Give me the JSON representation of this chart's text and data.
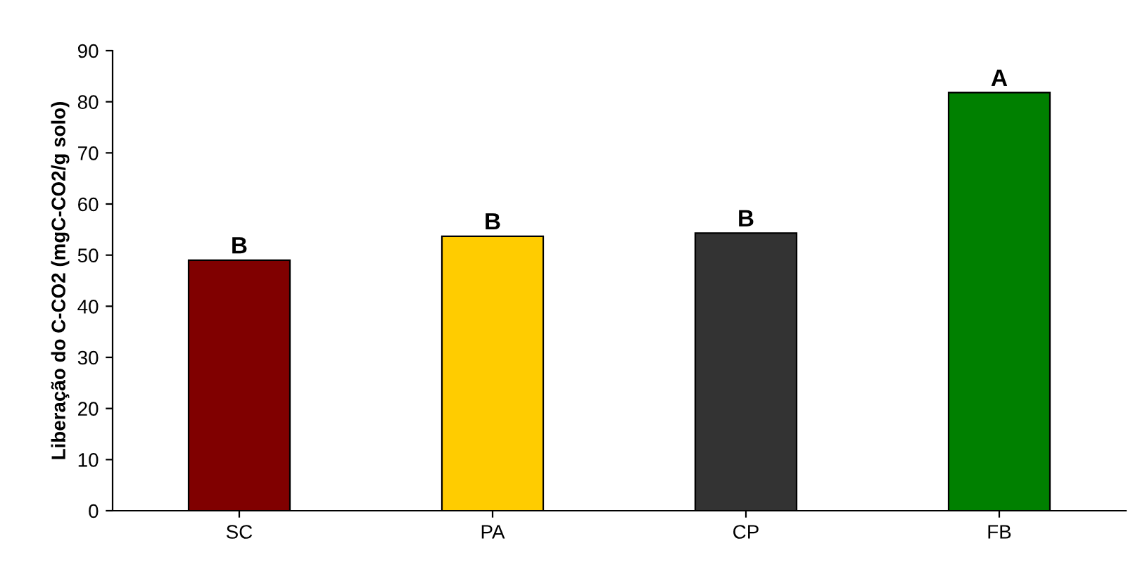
{
  "chart_data": {
    "type": "bar",
    "ylabel": "Liberação do C-CO2 (mgC-CO2/g solo)",
    "categories": [
      "SC",
      "PA",
      "CP",
      "FB"
    ],
    "values": [
      49,
      53.7,
      54.3,
      81.8
    ],
    "colors": [
      "#800000",
      "#ffcc00",
      "#333333",
      "#008000"
    ],
    "ylim": [
      0,
      90
    ],
    "yticks": [
      0,
      10,
      20,
      30,
      40,
      50,
      60,
      70,
      80,
      90
    ],
    "grid": false,
    "legend": false,
    "annotations": [
      {
        "text": "B",
        "x": "SC",
        "y": 49
      },
      {
        "text": "B",
        "x": "PA",
        "y": 53.7
      },
      {
        "text": "B",
        "x": "CP",
        "y": 54.3
      },
      {
        "text": "A",
        "x": "FB",
        "y": 81.8
      }
    ]
  }
}
